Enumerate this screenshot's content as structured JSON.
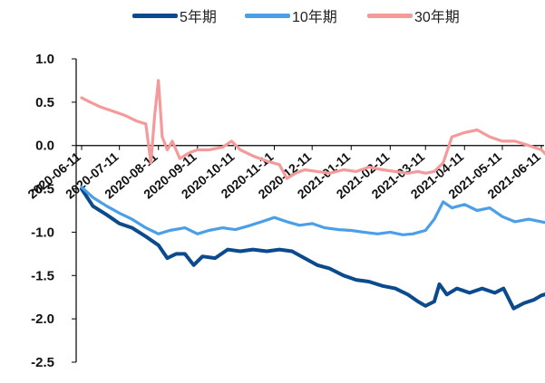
{
  "chart_data": {
    "type": "line",
    "title": "",
    "xlabel": "",
    "ylabel": "",
    "ylim": [
      -2.5,
      1.0
    ],
    "yticks": [
      "1.0",
      "0.5",
      "0.0",
      "-0.5",
      "-1.0",
      "-1.5",
      "-2.0",
      "-2.5"
    ],
    "x_ticks": [
      "2020-06-11",
      "2020-07-11",
      "2020-08-11",
      "2020-09-11",
      "2020-10-11",
      "2020-11-11",
      "2020-12-11",
      "2021-01-11",
      "2021-02-11",
      "2021-03-11",
      "2021-04-11",
      "2021-05-11",
      "2021-06-11"
    ],
    "grid": false,
    "legend_position": "top",
    "series": [
      {
        "name": "5年期",
        "color": "#0b4a8c",
        "points": [
          [
            "2020-06-11",
            -0.5
          ],
          [
            "2020-06-20",
            -0.7
          ],
          [
            "2020-07-01",
            -0.8
          ],
          [
            "2020-07-11",
            -0.9
          ],
          [
            "2020-07-21",
            -0.95
          ],
          [
            "2020-08-01",
            -1.05
          ],
          [
            "2020-08-11",
            -1.15
          ],
          [
            "2020-08-18",
            -1.3
          ],
          [
            "2020-08-25",
            -1.25
          ],
          [
            "2020-09-01",
            -1.25
          ],
          [
            "2020-09-08",
            -1.38
          ],
          [
            "2020-09-15",
            -1.28
          ],
          [
            "2020-09-25",
            -1.3
          ],
          [
            "2020-10-05",
            -1.2
          ],
          [
            "2020-10-15",
            -1.22
          ],
          [
            "2020-10-25",
            -1.2
          ],
          [
            "2020-11-05",
            -1.22
          ],
          [
            "2020-11-15",
            -1.2
          ],
          [
            "2020-11-25",
            -1.22
          ],
          [
            "2020-12-05",
            -1.3
          ],
          [
            "2020-12-15",
            -1.38
          ],
          [
            "2020-12-25",
            -1.42
          ],
          [
            "2021-01-05",
            -1.5
          ],
          [
            "2021-01-15",
            -1.55
          ],
          [
            "2021-01-25",
            -1.57
          ],
          [
            "2021-02-05",
            -1.62
          ],
          [
            "2021-02-15",
            -1.65
          ],
          [
            "2021-02-25",
            -1.72
          ],
          [
            "2021-03-05",
            -1.8
          ],
          [
            "2021-03-11",
            -1.85
          ],
          [
            "2021-03-18",
            -1.8
          ],
          [
            "2021-03-22",
            -1.6
          ],
          [
            "2021-03-28",
            -1.72
          ],
          [
            "2021-04-05",
            -1.65
          ],
          [
            "2021-04-15",
            -1.7
          ],
          [
            "2021-04-25",
            -1.65
          ],
          [
            "2021-05-05",
            -1.7
          ],
          [
            "2021-05-12",
            -1.65
          ],
          [
            "2021-05-20",
            -1.88
          ],
          [
            "2021-05-28",
            -1.82
          ],
          [
            "2021-06-05",
            -1.78
          ],
          [
            "2021-06-11",
            -1.73
          ],
          [
            "2021-06-18",
            -1.7
          ]
        ]
      },
      {
        "name": "10年期",
        "color": "#4a9fe8",
        "points": [
          [
            "2020-06-11",
            -0.48
          ],
          [
            "2020-06-20",
            -0.6
          ],
          [
            "2020-07-01",
            -0.7
          ],
          [
            "2020-07-11",
            -0.78
          ],
          [
            "2020-07-21",
            -0.85
          ],
          [
            "2020-08-01",
            -0.95
          ],
          [
            "2020-08-11",
            -1.02
          ],
          [
            "2020-08-20",
            -0.98
          ],
          [
            "2020-09-01",
            -0.95
          ],
          [
            "2020-09-11",
            -1.02
          ],
          [
            "2020-09-20",
            -0.98
          ],
          [
            "2020-10-01",
            -0.95
          ],
          [
            "2020-10-11",
            -0.97
          ],
          [
            "2020-10-21",
            -0.93
          ],
          [
            "2020-11-01",
            -0.88
          ],
          [
            "2020-11-11",
            -0.83
          ],
          [
            "2020-11-21",
            -0.88
          ],
          [
            "2020-12-01",
            -0.92
          ],
          [
            "2020-12-11",
            -0.9
          ],
          [
            "2020-12-21",
            -0.95
          ],
          [
            "2021-01-01",
            -0.97
          ],
          [
            "2021-01-11",
            -0.98
          ],
          [
            "2021-01-21",
            -1.0
          ],
          [
            "2021-02-01",
            -1.02
          ],
          [
            "2021-02-11",
            -1.0
          ],
          [
            "2021-02-21",
            -1.03
          ],
          [
            "2021-03-01",
            -1.02
          ],
          [
            "2021-03-11",
            -0.98
          ],
          [
            "2021-03-18",
            -0.85
          ],
          [
            "2021-03-25",
            -0.65
          ],
          [
            "2021-04-01",
            -0.72
          ],
          [
            "2021-04-11",
            -0.68
          ],
          [
            "2021-04-21",
            -0.75
          ],
          [
            "2021-05-01",
            -0.72
          ],
          [
            "2021-05-11",
            -0.82
          ],
          [
            "2021-05-21",
            -0.88
          ],
          [
            "2021-06-01",
            -0.85
          ],
          [
            "2021-06-11",
            -0.88
          ],
          [
            "2021-06-18",
            -0.9
          ]
        ]
      },
      {
        "name": "30年期",
        "color": "#f59a9a",
        "points": [
          [
            "2020-06-11",
            0.55
          ],
          [
            "2020-06-18",
            0.5
          ],
          [
            "2020-06-25",
            0.45
          ],
          [
            "2020-07-05",
            0.4
          ],
          [
            "2020-07-15",
            0.35
          ],
          [
            "2020-07-25",
            0.28
          ],
          [
            "2020-08-01",
            0.25
          ],
          [
            "2020-08-05",
            -0.2
          ],
          [
            "2020-08-08",
            0.35
          ],
          [
            "2020-08-11",
            0.75
          ],
          [
            "2020-08-14",
            0.1
          ],
          [
            "2020-08-18",
            -0.05
          ],
          [
            "2020-08-22",
            0.05
          ],
          [
            "2020-08-28",
            -0.15
          ],
          [
            "2020-09-05",
            -0.08
          ],
          [
            "2020-09-11",
            -0.05
          ],
          [
            "2020-09-20",
            -0.05
          ],
          [
            "2020-10-01",
            -0.02
          ],
          [
            "2020-10-08",
            0.05
          ],
          [
            "2020-10-15",
            -0.05
          ],
          [
            "2020-10-25",
            -0.12
          ],
          [
            "2020-11-05",
            -0.18
          ],
          [
            "2020-11-15",
            -0.22
          ],
          [
            "2020-11-21",
            -0.38
          ],
          [
            "2020-11-28",
            -0.32
          ],
          [
            "2020-12-05",
            -0.28
          ],
          [
            "2020-12-15",
            -0.3
          ],
          [
            "2020-12-25",
            -0.32
          ],
          [
            "2021-01-05",
            -0.28
          ],
          [
            "2021-01-15",
            -0.3
          ],
          [
            "2021-01-25",
            -0.25
          ],
          [
            "2021-02-05",
            -0.28
          ],
          [
            "2021-02-15",
            -0.3
          ],
          [
            "2021-02-25",
            -0.32
          ],
          [
            "2021-03-05",
            -0.3
          ],
          [
            "2021-03-11",
            -0.32
          ],
          [
            "2021-03-18",
            -0.3
          ],
          [
            "2021-03-25",
            -0.2
          ],
          [
            "2021-04-01",
            0.1
          ],
          [
            "2021-04-11",
            0.15
          ],
          [
            "2021-04-21",
            0.18
          ],
          [
            "2021-05-01",
            0.1
          ],
          [
            "2021-05-11",
            0.05
          ],
          [
            "2021-05-21",
            0.05
          ],
          [
            "2021-06-01",
            0.0
          ],
          [
            "2021-06-11",
            -0.05
          ],
          [
            "2021-06-18",
            -0.15
          ]
        ]
      }
    ]
  }
}
